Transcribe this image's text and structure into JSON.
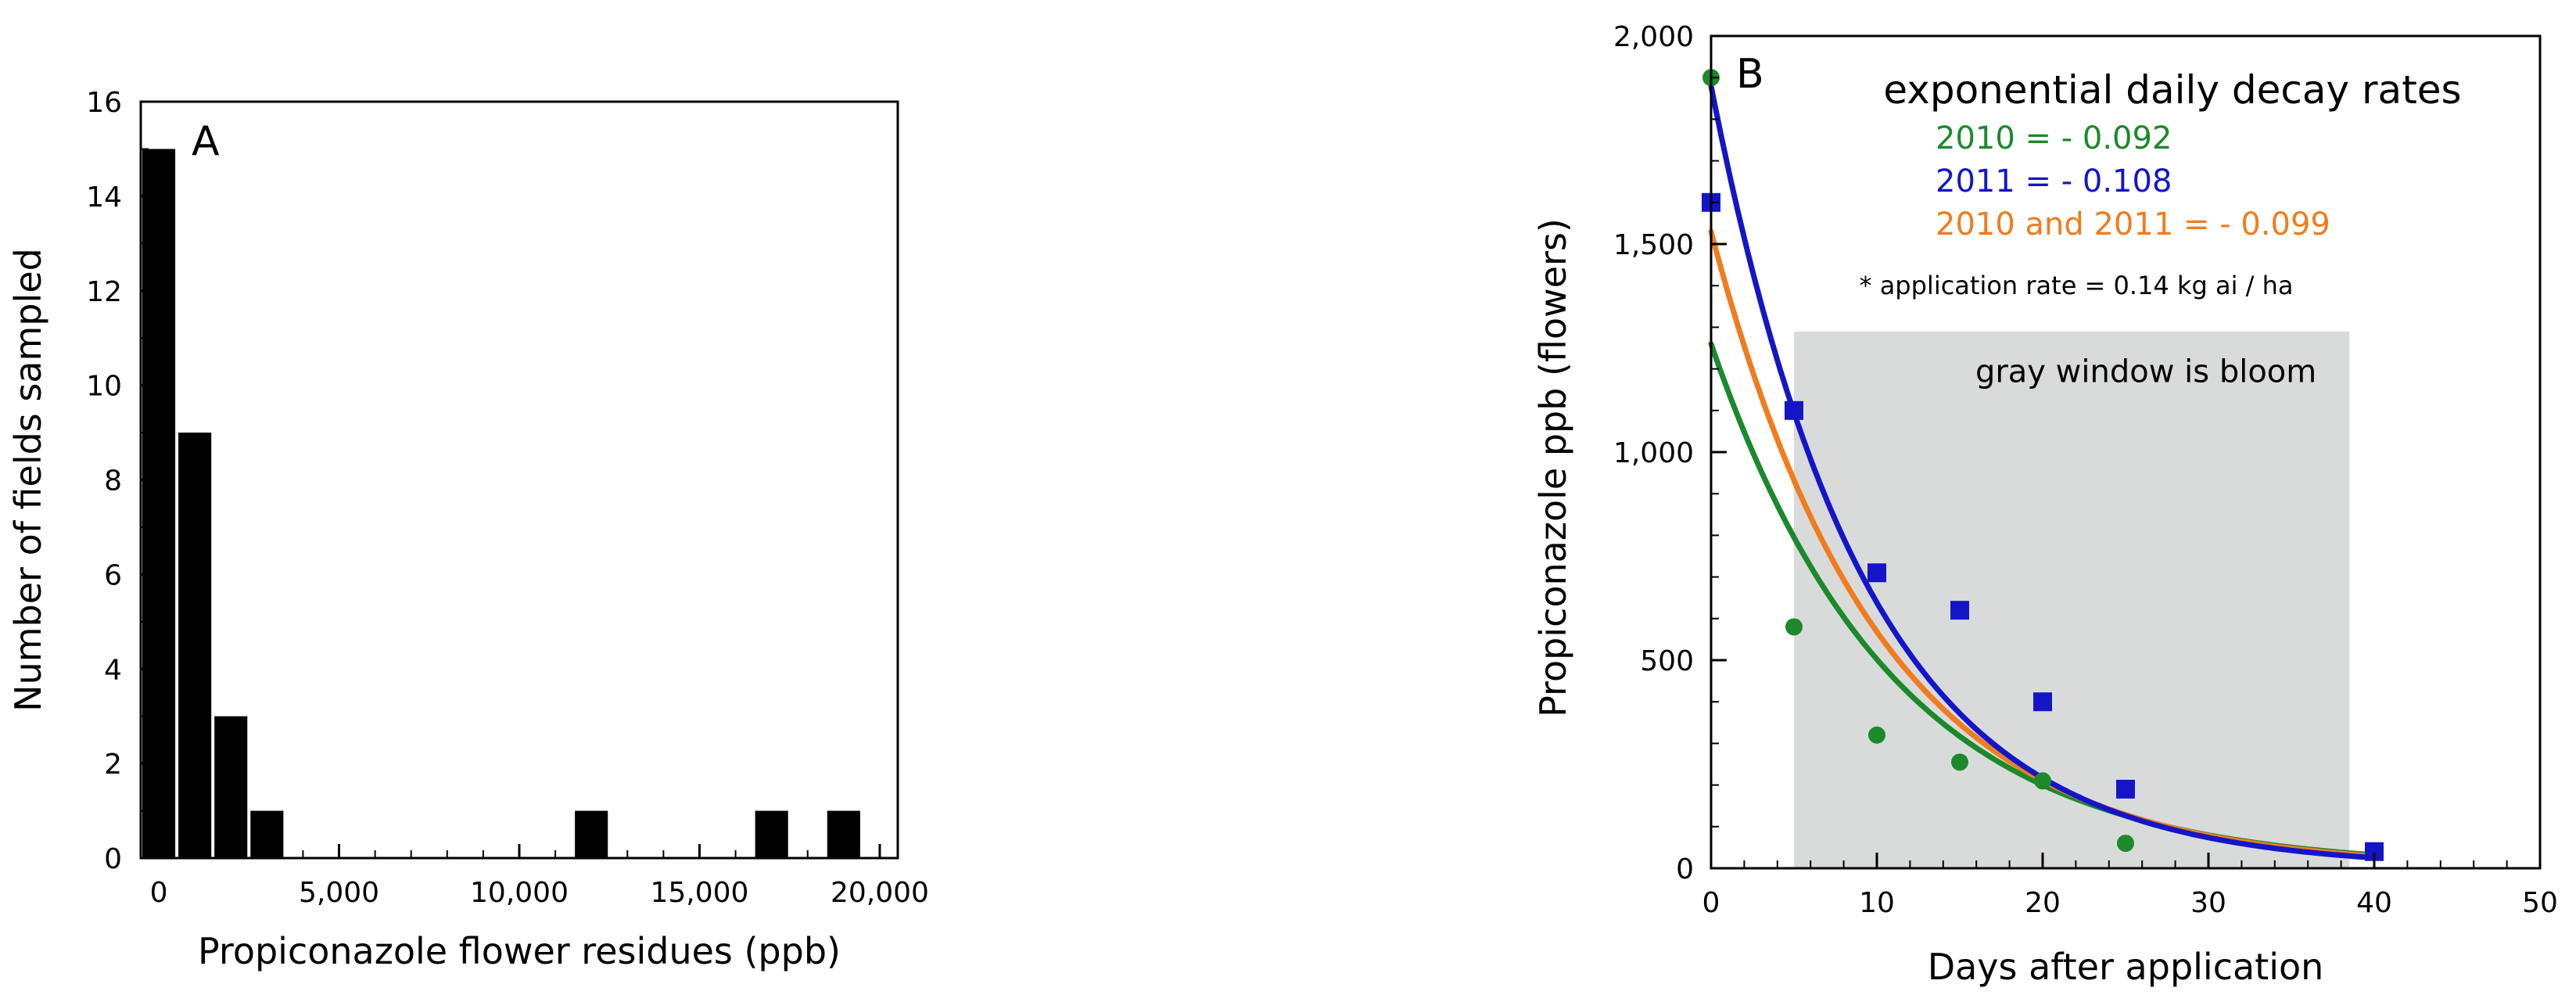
{
  "chart_data": [
    {
      "panel": "A",
      "type": "bar",
      "xlabel": "Propiconazole flower residues (ppb)",
      "ylabel": "Number of fields sampled",
      "xlim": [
        -500,
        20500
      ],
      "ylim": [
        0,
        16
      ],
      "x_ticks": [
        0,
        5000,
        10000,
        15000,
        20000
      ],
      "x_tick_labels": [
        "0",
        "5,000",
        "10,000",
        "15,000",
        "20,000"
      ],
      "y_ticks": [
        0,
        2,
        4,
        6,
        8,
        10,
        12,
        14,
        16
      ],
      "y_tick_labels": [
        "0",
        "2",
        "4",
        "6",
        "8",
        "10",
        "12",
        "14",
        "16"
      ],
      "bin_width": 1000,
      "bars": [
        {
          "x": 0,
          "value": 15
        },
        {
          "x": 1000,
          "value": 9
        },
        {
          "x": 2000,
          "value": 3
        },
        {
          "x": 3000,
          "value": 1
        },
        {
          "x": 12000,
          "value": 1
        },
        {
          "x": 17000,
          "value": 1
        },
        {
          "x": 19000,
          "value": 1
        }
      ],
      "bar_color": "#000000"
    },
    {
      "panel": "B",
      "type": "scatter",
      "xlabel": "Days after application",
      "ylabel": "Propiconazole ppb (flowers)",
      "xlim": [
        0,
        50
      ],
      "ylim": [
        0,
        2000
      ],
      "x_ticks": [
        0,
        10,
        20,
        30,
        40,
        50
      ],
      "x_tick_labels": [
        "0",
        "10",
        "20",
        "30",
        "40",
        "50"
      ],
      "y_ticks": [
        0,
        500,
        1000,
        1500,
        2000
      ],
      "y_tick_labels": [
        "0",
        "500",
        "1,000",
        "1,500",
        "2,000"
      ],
      "legend_title": "exponential daily decay rates",
      "series": [
        {
          "name": "2010 = - 0.092",
          "color": "#1a8a2a",
          "marker": "circle",
          "x": [
            0,
            5,
            10,
            15,
            20,
            25
          ],
          "y": [
            1900,
            580,
            320,
            255,
            210,
            60
          ],
          "fit_a": 1260,
          "fit_k": 0.092
        },
        {
          "name": "2011 = - 0.108",
          "color": "#1515c8",
          "marker": "square",
          "x": [
            0,
            5,
            10,
            15,
            20,
            25,
            40
          ],
          "y": [
            1600,
            1100,
            710,
            620,
            400,
            190,
            40
          ],
          "fit_a": 1880,
          "fit_k": 0.108
        },
        {
          "name": "2010 and 2011 = - 0.099",
          "color": "#f07c1e",
          "marker": "none",
          "fit_a": 1530,
          "fit_k": 0.099
        }
      ],
      "note": "* application rate = 0.14 kg ai / ha",
      "bloom_window": {
        "x_start": 5,
        "x_end": 38.5,
        "y_top": 1290,
        "label": "gray window is bloom",
        "color": "#d9dbdb"
      }
    }
  ]
}
